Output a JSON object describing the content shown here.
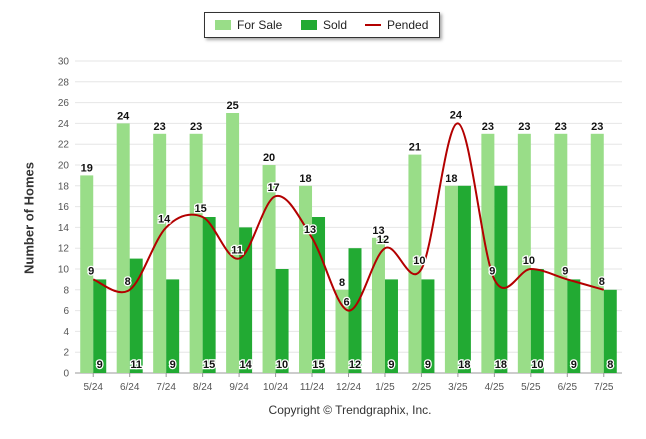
{
  "chart_data": {
    "type": "bar",
    "categories": [
      "5/24",
      "6/24",
      "7/24",
      "8/24",
      "9/24",
      "10/24",
      "11/24",
      "12/24",
      "1/25",
      "2/25",
      "3/25",
      "4/25",
      "5/25",
      "6/25",
      "7/25"
    ],
    "series": [
      {
        "name": "For Sale",
        "type": "bar",
        "color": "#99dd88",
        "values": [
          19,
          24,
          23,
          23,
          25,
          20,
          18,
          8,
          13,
          21,
          18,
          23,
          23,
          23,
          23
        ]
      },
      {
        "name": "Sold",
        "type": "bar",
        "color": "#22aa33",
        "values": [
          9,
          11,
          9,
          15,
          14,
          10,
          15,
          12,
          9,
          9,
          18,
          18,
          10,
          9,
          8
        ]
      },
      {
        "name": "Pended",
        "type": "line",
        "color": "#b30000",
        "values": [
          9,
          8,
          14,
          15,
          11,
          17,
          13,
          6,
          12,
          10,
          24,
          9,
          10,
          9,
          8
        ]
      }
    ],
    "ylabel": "Number of Homes",
    "ylim": [
      0,
      30
    ],
    "yticks": [
      0,
      2,
      4,
      6,
      8,
      10,
      12,
      14,
      16,
      18,
      20,
      22,
      24,
      26,
      28,
      30
    ],
    "grid": true,
    "legend_position": "top-center"
  },
  "legend": {
    "for_sale_label": "For Sale",
    "sold_label": "Sold",
    "pended_label": "Pended"
  },
  "footer": {
    "copyright": "Copyright © Trendgraphix, Inc."
  }
}
